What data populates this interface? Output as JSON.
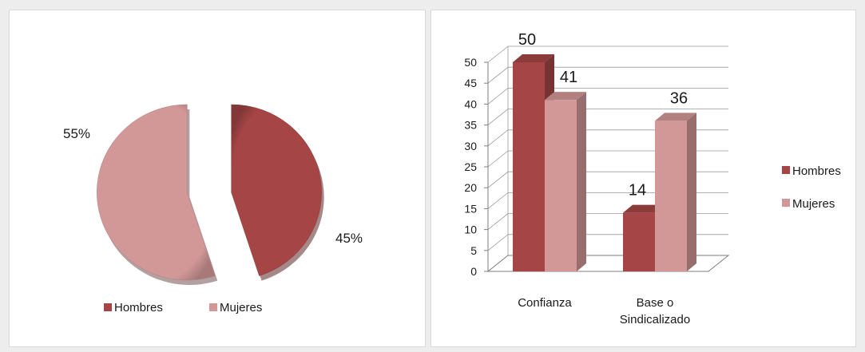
{
  "colors": {
    "hombres": "#a54545",
    "mujeres": "#d29797"
  },
  "chart_data": [
    {
      "type": "pie",
      "slices": [
        {
          "name": "Hombres",
          "value": 45,
          "label": "45%"
        },
        {
          "name": "Mujeres",
          "value": 55,
          "label": "55%"
        }
      ],
      "legend": [
        "Hombres",
        "Mujeres"
      ],
      "legend_position": "bottom",
      "exploded": true
    },
    {
      "type": "bar",
      "categories": [
        [
          "Confianza"
        ],
        [
          "Base o",
          "Sindicalizado"
        ]
      ],
      "series": [
        {
          "name": "Hombres",
          "values": [
            50,
            14
          ]
        },
        {
          "name": "Mujeres",
          "values": [
            41,
            36
          ]
        }
      ],
      "ylim": [
        0,
        50
      ],
      "yticks": [
        0,
        5,
        10,
        15,
        20,
        25,
        30,
        35,
        40,
        45,
        50
      ],
      "grid": true,
      "legend_position": "right",
      "style": "3d-clustered"
    }
  ]
}
